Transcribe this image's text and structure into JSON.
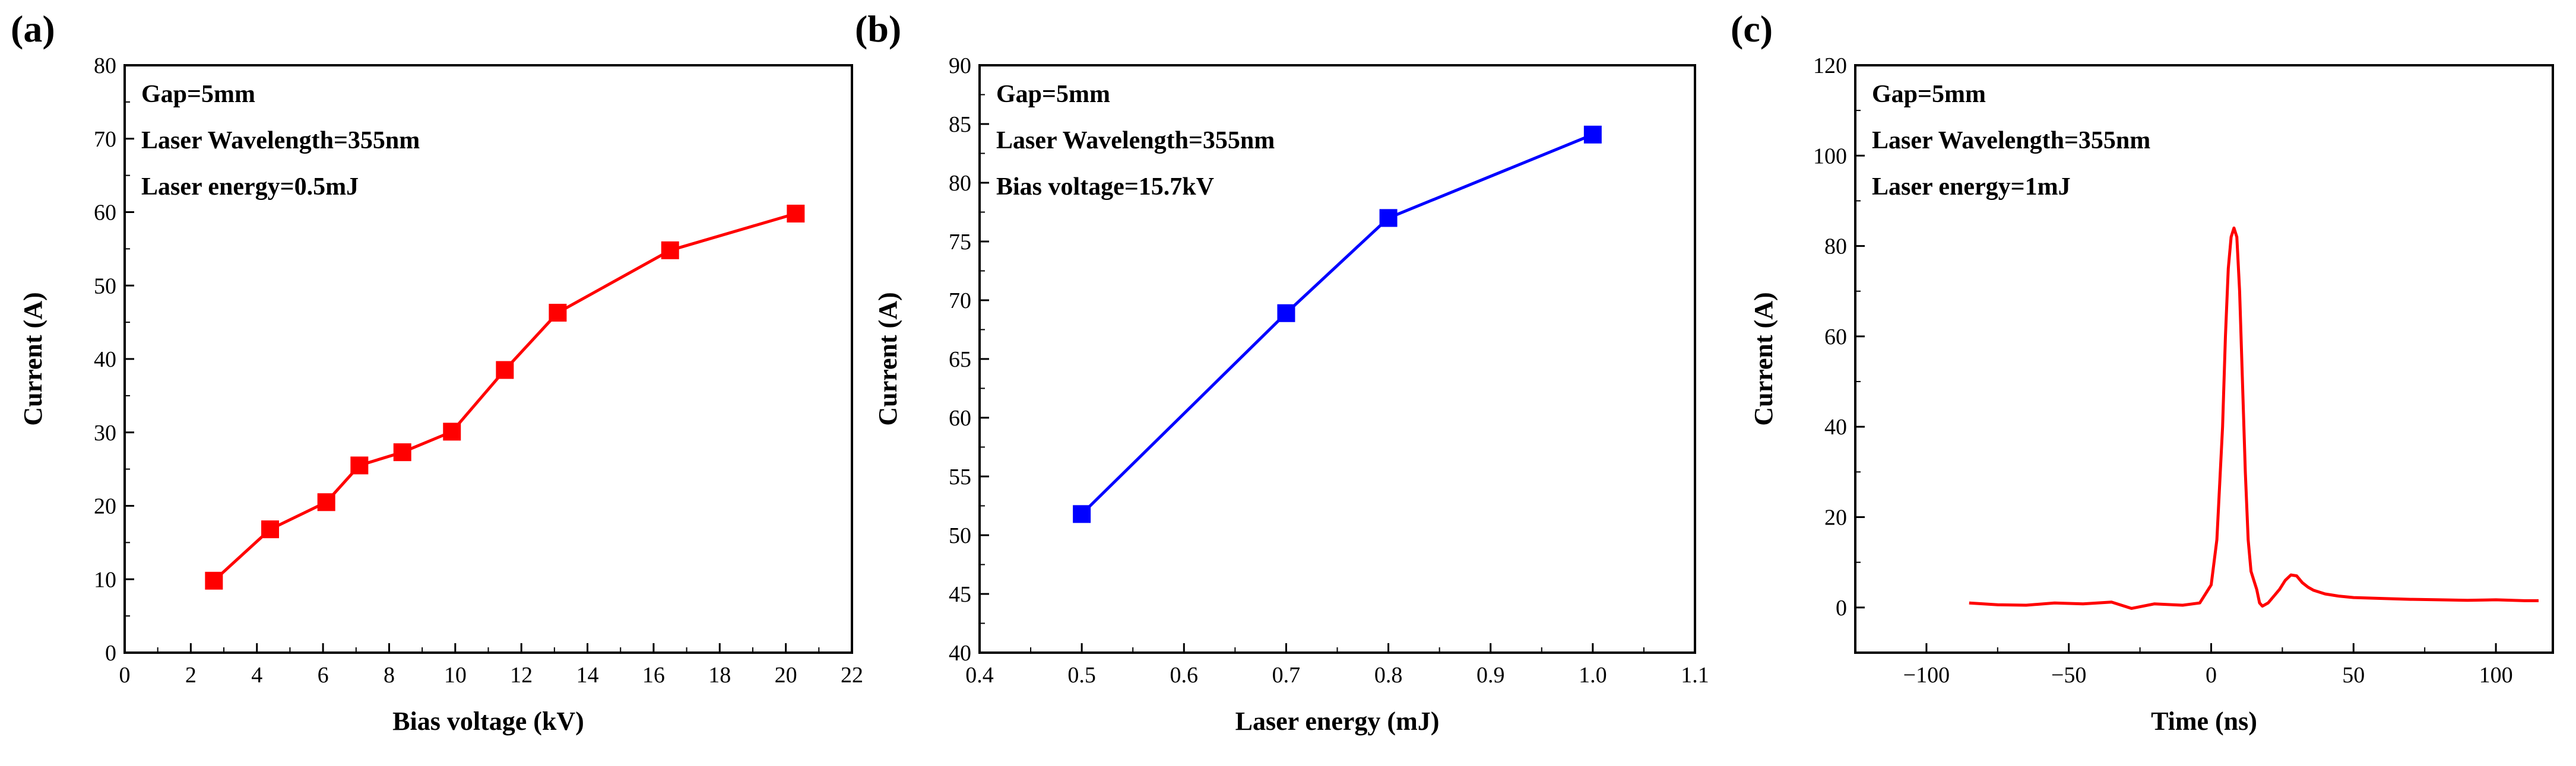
{
  "chart_data": [
    {
      "panel_label": "(a)",
      "type": "line",
      "xlabel": "Bias voltage (kV)",
      "ylabel": "Current (A)",
      "xlim": [
        0,
        22
      ],
      "ylim": [
        0,
        80
      ],
      "xticks": [
        0,
        2,
        4,
        6,
        8,
        10,
        12,
        14,
        16,
        18,
        20,
        22
      ],
      "yticks": [
        0,
        10,
        20,
        30,
        40,
        50,
        60,
        70,
        80
      ],
      "annotations": [
        "Gap=5mm",
        "Laser Wavelength=355nm",
        "Laser energy=0.5mJ"
      ],
      "color": "#ff0000",
      "marker": "square",
      "x": [
        2.7,
        4.4,
        6.1,
        7.1,
        8.4,
        9.9,
        11.5,
        13.1,
        16.5,
        20.3
      ],
      "y": [
        9.8,
        16.8,
        20.5,
        25.5,
        27.3,
        30.1,
        38.5,
        46.3,
        54.8,
        59.8
      ]
    },
    {
      "panel_label": "(b)",
      "type": "line",
      "xlabel": "Laser energy (mJ)",
      "ylabel": "Current (A)",
      "xlim": [
        0.4,
        1.1
      ],
      "ylim": [
        40,
        90
      ],
      "xticks": [
        0.4,
        0.5,
        0.6,
        0.7,
        0.8,
        0.9,
        1.0,
        1.1
      ],
      "xtick_labels": [
        "0.4",
        "0.5",
        "0.6",
        "0.7",
        "0.8",
        "0.9",
        "1.0",
        "1.1"
      ],
      "yticks": [
        40,
        45,
        50,
        55,
        60,
        65,
        70,
        75,
        80,
        85,
        90
      ],
      "annotations": [
        "Gap=5mm",
        "Laser Wavelength=355nm",
        "Bias voltage=15.7kV"
      ],
      "color": "#0000ff",
      "marker": "square",
      "x": [
        0.5,
        0.7,
        0.8,
        1.0
      ],
      "y": [
        51.8,
        68.9,
        77.0,
        84.1
      ]
    },
    {
      "panel_label": "(c)",
      "type": "line",
      "xlabel": "Time (ns)",
      "ylabel": "Current (A)",
      "xlim": [
        -125,
        120
      ],
      "ylim": [
        -10,
        120
      ],
      "xticks": [
        -100,
        -50,
        0,
        50,
        100
      ],
      "xtick_labels": [
        "−100",
        "−50",
        "0",
        "50",
        "100"
      ],
      "yticks": [
        0,
        20,
        40,
        60,
        80,
        100,
        120
      ],
      "annotations": [
        "Gap=5mm",
        "Laser Wavelength=355nm",
        "Laser energy=1mJ"
      ],
      "color": "#ff0000",
      "marker": "none",
      "x": [
        -85,
        -75,
        -65,
        -55,
        -45,
        -35,
        -28,
        -20,
        -10,
        -4,
        0,
        2,
        4,
        5,
        6,
        7,
        8,
        9,
        10,
        11,
        12,
        13,
        14,
        15,
        16,
        17,
        18,
        20,
        22,
        24,
        26,
        28,
        30,
        32,
        34,
        36,
        40,
        45,
        50,
        60,
        70,
        80,
        90,
        100,
        110,
        115
      ],
      "y": [
        1,
        0.6,
        0.5,
        1,
        0.8,
        1.2,
        -0.2,
        0.8,
        0.5,
        1,
        5,
        15,
        40,
        60,
        75,
        82,
        84,
        82,
        70,
        50,
        30,
        15,
        8,
        6,
        4,
        1,
        0.3,
        1,
        2.5,
        4,
        6,
        7.2,
        7,
        5.5,
        4.5,
        3.8,
        3,
        2.5,
        2.2,
        2,
        1.8,
        1.7,
        1.6,
        1.7,
        1.5,
        1.5
      ]
    }
  ]
}
